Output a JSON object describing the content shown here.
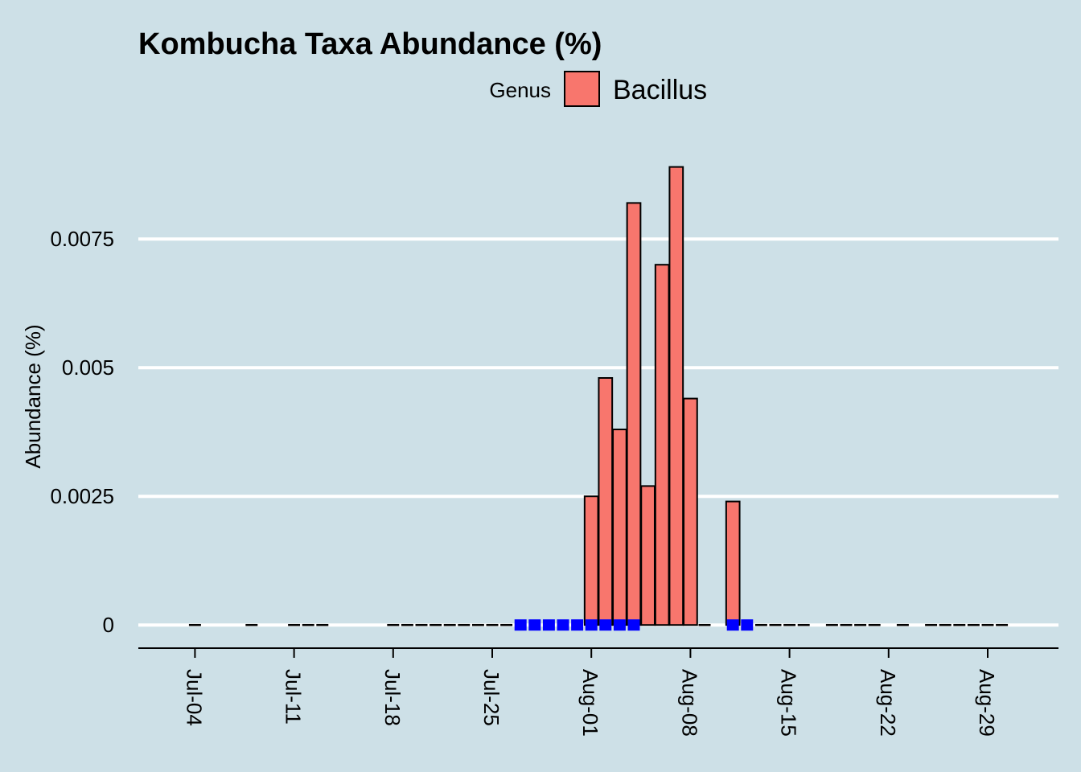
{
  "chart_data": {
    "type": "bar",
    "title": "Kombucha Taxa Abundance (%)",
    "xlabel": "",
    "ylabel": "Abundance (%)",
    "legend": {
      "title": "Genus",
      "entries": [
        {
          "name": "Bacillus",
          "color": "#F8766D"
        }
      ],
      "placement": "top"
    },
    "x_type": "date",
    "x_ticks": [
      "Jul-04",
      "Jul-11",
      "Jul-18",
      "Jul-25",
      "Aug-01",
      "Aug-08",
      "Aug-15",
      "Aug-22",
      "Aug-29"
    ],
    "x_tick_dates": [
      "2022-07-04",
      "2022-07-11",
      "2022-07-18",
      "2022-07-25",
      "2022-08-01",
      "2022-08-08",
      "2022-08-15",
      "2022-08-22",
      "2022-08-29"
    ],
    "xlim": [
      "2022-06-30",
      "2022-09-03"
    ],
    "ylim": [
      -0.00045,
      0.0098
    ],
    "y_ticks": [
      0,
      0.0025,
      0.005,
      0.0075
    ],
    "y_tick_labels": [
      "0",
      "0.0025",
      "0.005",
      "0.0075"
    ],
    "grid": "horizontal major",
    "series": [
      {
        "name": "Bacillus",
        "color": "#F8766D",
        "dates": [
          "2022-08-01",
          "2022-08-02",
          "2022-08-03",
          "2022-08-04",
          "2022-08-05",
          "2022-08-06",
          "2022-08-07",
          "2022-08-08",
          "2022-08-11"
        ],
        "values": [
          0.0025,
          0.0048,
          0.0038,
          0.0082,
          0.0027,
          0.007,
          0.0089,
          0.0044,
          0.0024
        ]
      }
    ],
    "zero_markers": {
      "color": "#000000",
      "dates": [
        "2022-07-04",
        "2022-07-08",
        "2022-07-11",
        "2022-07-12",
        "2022-07-13",
        "2022-07-18",
        "2022-07-19",
        "2022-07-20",
        "2022-07-21",
        "2022-07-22",
        "2022-07-23",
        "2022-07-24",
        "2022-07-25",
        "2022-07-26",
        "2022-08-09",
        "2022-08-13",
        "2022-08-14",
        "2022-08-15",
        "2022-08-16",
        "2022-08-18",
        "2022-08-19",
        "2022-08-20",
        "2022-08-21",
        "2022-08-23",
        "2022-08-25",
        "2022-08-26",
        "2022-08-27",
        "2022-08-28",
        "2022-08-29",
        "2022-08-30"
      ]
    },
    "highlight_markers": {
      "color": "#0000FF",
      "dates": [
        "2022-07-27",
        "2022-07-28",
        "2022-07-29",
        "2022-07-30",
        "2022-07-31",
        "2022-08-01",
        "2022-08-02",
        "2022-08-03",
        "2022-08-04",
        "2022-08-11",
        "2022-08-12"
      ]
    }
  }
}
